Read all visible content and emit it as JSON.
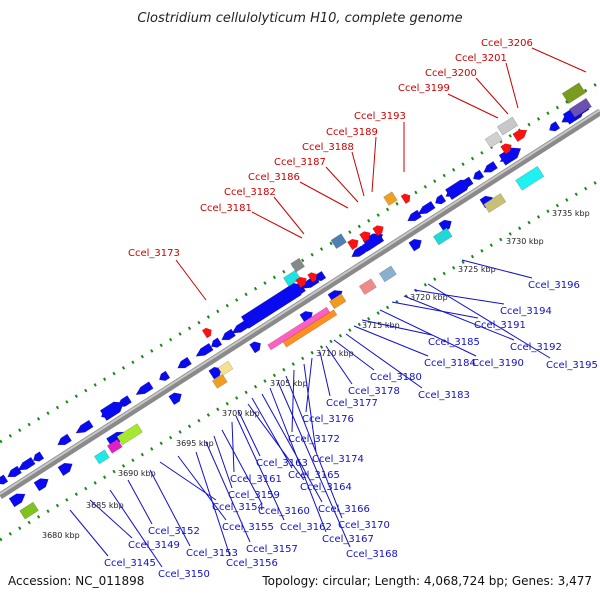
{
  "title": "Clostridium cellulolyticum H10, complete genome",
  "footer": {
    "accession": "Accession: NC_011898",
    "stats": "Topology: circular; Length: 4,068,724 bp; Genes: 3,477"
  },
  "ticks": [
    "3680 kbp",
    "3685 kbp",
    "3690 kbp",
    "3695 kbp",
    "3700 kbp",
    "3705 kbp",
    "3710 kbp",
    "3715 kbp",
    "3720 kbp",
    "3725 kbp",
    "3730 kbp",
    "3735 kbp"
  ],
  "colors": {
    "backbone": "#8a8a8a",
    "forward": "#0a0af0",
    "reverse": "#0a0af0",
    "hit_red": "#ff1010",
    "label_red": "#cc0000",
    "label_blue": "#1010cc",
    "dots": "#1a8a1a"
  },
  "top_labels": [
    "Ccel_3173",
    "Ccel_3181",
    "Ccel_3182",
    "Ccel_3186",
    "Ccel_3187",
    "Ccel_3188",
    "Ccel_3189",
    "Ccel_3193",
    "Ccel_3199",
    "Ccel_3200",
    "Ccel_3201",
    "Ccel_3206"
  ],
  "bottom_labels": [
    "Ccel_3145",
    "Ccel_3149",
    "Ccel_3150",
    "Ccel_3152",
    "Ccel_3153",
    "Ccel_3154",
    "Ccel_3155",
    "Ccel_3156",
    "Ccel_3157",
    "Ccel_3159",
    "Ccel_3160",
    "Ccel_3161",
    "Ccel_3162",
    "Ccel_3163",
    "Ccel_3164",
    "Ccel_3165",
    "Ccel_3166",
    "Ccel_3167",
    "Ccel_3168",
    "Ccel_3170",
    "Ccel_3172",
    "Ccel_3174",
    "Ccel_3176",
    "Ccel_3177",
    "Ccel_3178",
    "Ccel_3180",
    "Ccel_3183",
    "Ccel_3184",
    "Ccel_3185",
    "Ccel_3190",
    "Ccel_3191",
    "Ccel_3192",
    "Ccel_3194",
    "Ccel_3195",
    "Ccel_3196"
  ]
}
